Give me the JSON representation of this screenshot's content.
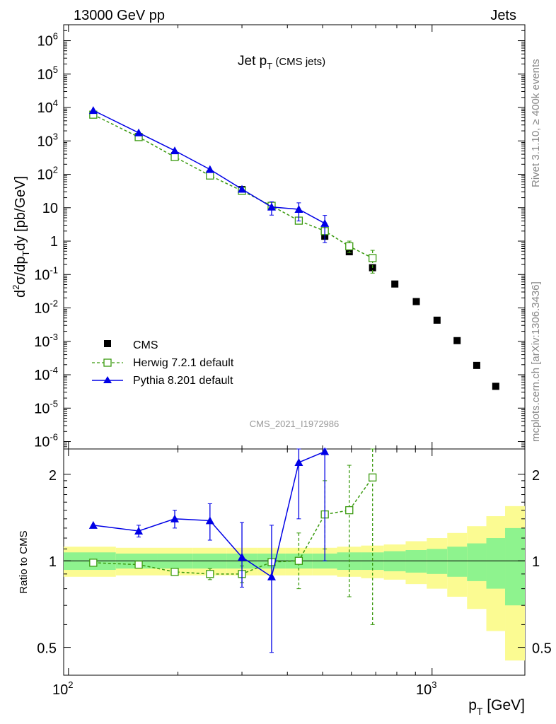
{
  "header": {
    "left": "13000 GeV pp",
    "right": "Jets"
  },
  "side_labels": {
    "rivet": "Rivet 3.1.10, ≥ 400k events",
    "mcplots": "mcplots.cern.ch [arXiv:1306.3436]"
  },
  "chart_data": [
    {
      "type": "scatter",
      "title": "Jet p_T (CMS jets)",
      "ylabel": "d²σ/dp_T dy [pb/GeV]",
      "watermark": "CMS_2021_I1972986",
      "x_scale": "log",
      "y_scale": "log",
      "xlim": [
        97,
        1800
      ],
      "ylim": [
        6e-07,
        3000000.0
      ],
      "legend_position": "lower-left",
      "y_tick_labels": [
        "10^-6",
        "10^-5",
        "10^-4",
        "10^-3",
        "10^-2",
        "10^-1",
        "1",
        "10",
        "10^2",
        "10^3",
        "10^4",
        "10^5",
        "10^6"
      ],
      "series": [
        {
          "name": "CMS",
          "color": "#000000",
          "marker": "filled-square",
          "x": [
            117,
            156,
            196,
            245,
            300,
            362,
            430,
            507,
            592,
            686,
            790,
            905,
            1032,
            1172,
            1327,
            1497
          ],
          "y": [
            6200,
            1350,
            360,
            100,
            35,
            11.5,
            4.1,
            1.4,
            0.48,
            0.16,
            0.052,
            0.0155,
            0.0043,
            0.00105,
            0.00019,
            4.5e-05
          ]
        },
        {
          "name": "Herwig 7.2.1 default",
          "color": "#3a9a0f",
          "marker": "open-square",
          "line": "dashed",
          "x": [
            117,
            156,
            196,
            245,
            300,
            362,
            430,
            507,
            592,
            686
          ],
          "y": [
            6100,
            1300,
            330,
            92,
            32,
            11.4,
            4.1,
            2.0,
            0.7,
            0.31
          ],
          "err_up": [
            0,
            0,
            0,
            0,
            0,
            0,
            0,
            0.4,
            0.3,
            0.22
          ],
          "err_dn": [
            0,
            0,
            0,
            0,
            0,
            0,
            0,
            0.4,
            0.25,
            0.2
          ]
        },
        {
          "name": "Pythia 8.201 default",
          "color": "#0000e6",
          "marker": "filled-triangle",
          "line": "solid",
          "x": [
            117,
            156,
            196,
            245,
            300,
            362,
            430,
            507
          ],
          "y": [
            8200,
            1750,
            510,
            140,
            36,
            10.5,
            9.0,
            3.4
          ],
          "err_up": [
            0,
            0,
            0,
            0,
            0,
            4.5,
            5.0,
            2.5
          ],
          "err_dn": [
            0,
            0,
            0,
            0,
            0,
            4.5,
            5.0,
            2.5
          ]
        }
      ]
    },
    {
      "type": "scatter",
      "ylabel": "Ratio to CMS",
      "xlabel": "p_T [GeV]",
      "x_scale": "log",
      "y_scale": "log",
      "xlim": [
        97,
        1800
      ],
      "ylim": [
        0.4,
        2.45
      ],
      "x_tick_labels": [
        "10^2",
        "10^3"
      ],
      "y_tick_labels": [
        "0.5",
        "1",
        "2"
      ],
      "band_edges": [
        97,
        135,
        176,
        220,
        272,
        330,
        395,
        468,
        548,
        638,
        737,
        846,
        967,
        1101,
        1248,
        1410,
        1588,
        1800
      ],
      "band_inner": [
        0.07,
        0.06,
        0.06,
        0.06,
        0.06,
        0.06,
        0.06,
        0.06,
        0.07,
        0.07,
        0.08,
        0.09,
        0.1,
        0.12,
        0.15,
        0.2,
        0.3
      ],
      "band_outer": [
        0.12,
        0.11,
        0.11,
        0.11,
        0.11,
        0.11,
        0.11,
        0.11,
        0.12,
        0.13,
        0.14,
        0.17,
        0.2,
        0.25,
        0.32,
        0.43,
        0.55
      ],
      "band_colors": {
        "inner": "#8ef38e",
        "outer": "#fbfb92"
      },
      "series": [
        {
          "name": "Herwig 7.2.1 default",
          "color": "#3a9a0f",
          "marker": "open-square",
          "line": "dashed",
          "x": [
            117,
            156,
            196,
            245,
            300,
            362,
            430,
            507,
            592,
            686
          ],
          "y": [
            0.985,
            0.97,
            0.915,
            0.9,
            0.9,
            0.99,
            1.0,
            1.45,
            1.5,
            1.95
          ],
          "err_up": [
            0,
            0,
            0.02,
            0.04,
            0.06,
            0,
            0.25,
            0.45,
            0.65,
            0.6
          ],
          "err_dn": [
            0,
            0,
            0.02,
            0.04,
            0.06,
            0,
            0.2,
            0.35,
            0.75,
            1.35
          ]
        },
        {
          "name": "Pythia 8.201 default",
          "color": "#0000e6",
          "marker": "filled-triangle",
          "line": "solid",
          "x": [
            117,
            156,
            196,
            245,
            300,
            362,
            430,
            507
          ],
          "y": [
            1.33,
            1.27,
            1.4,
            1.38,
            1.03,
            0.88,
            2.2,
            2.4
          ],
          "err_up": [
            0,
            0.06,
            0.1,
            0.2,
            0.33,
            0.45,
            0.8,
            0.7
          ],
          "err_dn": [
            0,
            0.06,
            0.1,
            0.2,
            0.22,
            0.4,
            0.8,
            1.4
          ]
        }
      ]
    }
  ]
}
